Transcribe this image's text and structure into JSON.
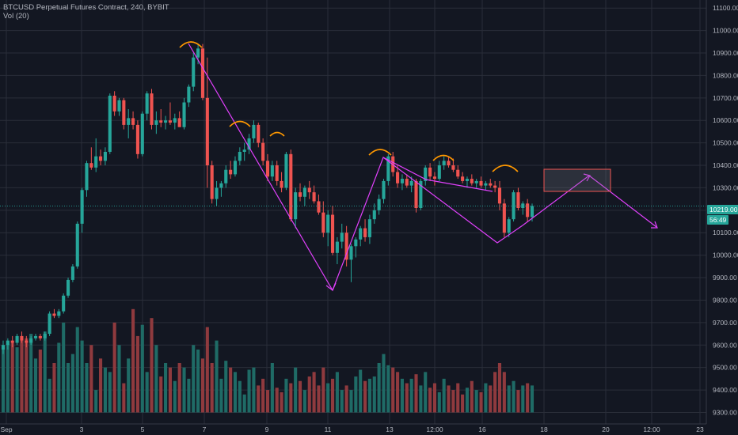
{
  "legend": {
    "title": "BTCUSD Perpetual Futures Contract, 240, BYBIT",
    "volume": "Vol (20)"
  },
  "price_tags": {
    "last_price": "10219.00",
    "countdown": "56:49"
  },
  "colors": {
    "background": "#131722",
    "grid": "#2a2e39",
    "up": "#26a69a",
    "down": "#ef5350",
    "volume_up": "#1f6b66",
    "volume_down": "#8f3a3e",
    "annotation_line": "#e040fb",
    "annotation_arc": "#ff9800",
    "zone": "#ef5350"
  },
  "chart_data": {
    "type": "candlestick",
    "y_axis_ticks": [
      "11100.00",
      "11000.00",
      "10900.00",
      "10800.00",
      "10700.00",
      "10600.00",
      "10500.00",
      "10400.00",
      "10300.00",
      "10200.00",
      "10100.00",
      "10000.00",
      "9900.00",
      "9800.00",
      "9700.00",
      "9600.00",
      "9500.00",
      "9400.00",
      "9300.00"
    ],
    "ylim": [
      9270,
      11150
    ],
    "x_axis_ticks": [
      "Sep",
      "3",
      "5",
      "7",
      "9",
      "11",
      "13",
      "12:00",
      "16",
      "18",
      "20",
      "12:00",
      "23"
    ],
    "candles": [
      [
        9580,
        9620,
        9560,
        9600
      ],
      [
        9600,
        9630,
        9580,
        9620
      ],
      [
        9620,
        9640,
        9590,
        9610
      ],
      [
        9610,
        9650,
        9600,
        9640
      ],
      [
        9640,
        9660,
        9610,
        9620
      ],
      [
        9620,
        9640,
        9590,
        9610
      ],
      [
        9610,
        9640,
        9600,
        9630
      ],
      [
        9630,
        9650,
        9620,
        9640
      ],
      [
        9640,
        9650,
        9620,
        9630
      ],
      [
        9630,
        9660,
        9620,
        9650
      ],
      [
        9650,
        9750,
        9640,
        9740
      ],
      [
        9740,
        9760,
        9720,
        9730
      ],
      [
        9730,
        9760,
        9720,
        9750
      ],
      [
        9750,
        9830,
        9740,
        9820
      ],
      [
        9820,
        9900,
        9810,
        9890
      ],
      [
        9890,
        9960,
        9880,
        9950
      ],
      [
        9950,
        10150,
        9940,
        10140
      ],
      [
        10140,
        10300,
        10100,
        10290
      ],
      [
        10290,
        10420,
        10260,
        10410
      ],
      [
        10410,
        10480,
        10380,
        10390
      ],
      [
        10390,
        10520,
        10370,
        10440
      ],
      [
        10440,
        10470,
        10400,
        10420
      ],
      [
        10420,
        10480,
        10400,
        10460
      ],
      [
        10460,
        10720,
        10450,
        10710
      ],
      [
        10710,
        10730,
        10620,
        10640
      ],
      [
        10640,
        10700,
        10620,
        10690
      ],
      [
        10690,
        10700,
        10560,
        10580
      ],
      [
        10580,
        10650,
        10520,
        10610
      ],
      [
        10610,
        10640,
        10560,
        10580
      ],
      [
        10580,
        10600,
        10430,
        10450
      ],
      [
        10450,
        10640,
        10440,
        10630
      ],
      [
        10630,
        10730,
        10600,
        10720
      ],
      [
        10720,
        10740,
        10560,
        10580
      ],
      [
        10580,
        10640,
        10540,
        10600
      ],
      [
        10600,
        10650,
        10570,
        10590
      ],
      [
        10590,
        10620,
        10560,
        10600
      ],
      [
        10600,
        10680,
        10580,
        10590
      ],
      [
        10590,
        10630,
        10560,
        10610
      ],
      [
        10610,
        10640,
        10580,
        10570
      ],
      [
        10570,
        10700,
        10560,
        10680
      ],
      [
        10680,
        10760,
        10660,
        10750
      ],
      [
        10750,
        10900,
        10730,
        10880
      ],
      [
        10880,
        10940,
        10850,
        10920
      ],
      [
        10920,
        10940,
        10690,
        10700
      ],
      [
        10700,
        10880,
        10300,
        10400
      ],
      [
        10400,
        10420,
        10230,
        10250
      ],
      [
        10250,
        10330,
        10220,
        10300
      ],
      [
        10300,
        10330,
        10260,
        10320
      ],
      [
        10320,
        10400,
        10300,
        10380
      ],
      [
        10380,
        10420,
        10340,
        10360
      ],
      [
        10360,
        10440,
        10350,
        10420
      ],
      [
        10420,
        10480,
        10400,
        10460
      ],
      [
        10460,
        10500,
        10420,
        10470
      ],
      [
        10470,
        10540,
        10450,
        10520
      ],
      [
        10520,
        10600,
        10500,
        10580
      ],
      [
        10580,
        10590,
        10480,
        10500
      ],
      [
        10500,
        10520,
        10400,
        10420
      ],
      [
        10420,
        10450,
        10330,
        10350
      ],
      [
        10350,
        10420,
        10330,
        10400
      ],
      [
        10400,
        10420,
        10310,
        10330
      ],
      [
        10330,
        10370,
        10280,
        10300
      ],
      [
        10300,
        10460,
        10290,
        10450
      ],
      [
        10450,
        10470,
        10150,
        10160
      ],
      [
        10160,
        10300,
        10120,
        10280
      ],
      [
        10280,
        10320,
        10240,
        10260
      ],
      [
        10260,
        10310,
        10220,
        10300
      ],
      [
        10300,
        10330,
        10250,
        10280
      ],
      [
        10280,
        10310,
        10230,
        10240
      ],
      [
        10240,
        10270,
        10180,
        10190
      ],
      [
        10190,
        10240,
        10080,
        10100
      ],
      [
        10100,
        10200,
        10040,
        10180
      ],
      [
        10180,
        10220,
        10000,
        10010
      ],
      [
        10010,
        10080,
        9960,
        10060
      ],
      [
        10060,
        10140,
        10030,
        10100
      ],
      [
        10100,
        10130,
        9950,
        9980
      ],
      [
        9980,
        10050,
        9880,
        10040
      ],
      [
        10040,
        10080,
        9990,
        10070
      ],
      [
        10070,
        10130,
        10040,
        10120
      ],
      [
        10120,
        10160,
        10060,
        10080
      ],
      [
        10080,
        10180,
        10050,
        10160
      ],
      [
        10160,
        10230,
        10140,
        10200
      ],
      [
        10200,
        10270,
        10180,
        10250
      ],
      [
        10250,
        10340,
        10230,
        10330
      ],
      [
        10330,
        10450,
        10310,
        10440
      ],
      [
        10440,
        10460,
        10350,
        10370
      ],
      [
        10370,
        10400,
        10300,
        10320
      ],
      [
        10320,
        10360,
        10290,
        10340
      ],
      [
        10340,
        10360,
        10300,
        10310
      ],
      [
        10310,
        10350,
        10280,
        10330
      ],
      [
        10330,
        10340,
        10190,
        10210
      ],
      [
        10210,
        10340,
        10200,
        10330
      ],
      [
        10330,
        10400,
        10310,
        10390
      ],
      [
        10390,
        10410,
        10330,
        10350
      ],
      [
        10350,
        10370,
        10310,
        10340
      ],
      [
        10340,
        10420,
        10330,
        10400
      ],
      [
        10400,
        10440,
        10380,
        10420
      ],
      [
        10420,
        10440,
        10390,
        10400
      ],
      [
        10400,
        10430,
        10370,
        10380
      ],
      [
        10380,
        10400,
        10340,
        10350
      ],
      [
        10350,
        10370,
        10320,
        10330
      ],
      [
        10330,
        10350,
        10300,
        10340
      ],
      [
        10340,
        10360,
        10310,
        10320
      ],
      [
        10320,
        10340,
        10300,
        10330
      ],
      [
        10330,
        10350,
        10300,
        10310
      ],
      [
        10310,
        10330,
        10290,
        10320
      ],
      [
        10320,
        10340,
        10300,
        10310
      ],
      [
        10310,
        10330,
        10280,
        10300
      ],
      [
        10300,
        10330,
        10200,
        10230
      ],
      [
        10230,
        10250,
        10080,
        10100
      ],
      [
        10100,
        10170,
        10080,
        10160
      ],
      [
        10160,
        10290,
        10150,
        10280
      ],
      [
        10280,
        10300,
        10200,
        10210
      ],
      [
        10210,
        10240,
        10180,
        10230
      ],
      [
        10230,
        10250,
        10150,
        10170
      ],
      [
        10170,
        10230,
        10150,
        10219
      ]
    ],
    "volumes": [
      9600,
      9605,
      9610,
      9590,
      9620,
      9630,
      9650,
      9540,
      9580,
      9660,
      9450,
      9520,
      9610,
      9700,
      9520,
      9560,
      9680,
      9620,
      9520,
      9600,
      9400,
      9540,
      9500,
      9480,
      9700,
      9600,
      9430,
      9540,
      9760,
      9640,
      9690,
      9480,
      9720,
      9600,
      9460,
      9520,
      9500,
      9440,
      9520,
      9500,
      9450,
      9600,
      9580,
      9540,
      9680,
      9520,
      9620,
      9450,
      9530,
      9500,
      9480,
      9440,
      9380,
      9490,
      9500,
      9420,
      9450,
      9400,
      9520,
      9410,
      9390,
      9450,
      9430,
      9500,
      9440,
      9400,
      9460,
      9480,
      9420,
      9500,
      9430,
      9450,
      9480,
      9400,
      9420,
      9400,
      9460,
      9490,
      9440,
      9450,
      9460,
      9520,
      9560,
      9510,
      9500,
      9480,
      9450,
      9430,
      9450,
      9470,
      9420,
      9480,
      9410,
      9430,
      9390,
      9450,
      9420,
      9400,
      9430,
      9380,
      9410,
      9440,
      9400,
      9390,
      9430,
      9420,
      9480,
      9520,
      9480,
      9420,
      9440,
      9400,
      9420,
      9430,
      9420
    ],
    "volume_scale": {
      "base": 9300,
      "ratio": 1
    }
  }
}
